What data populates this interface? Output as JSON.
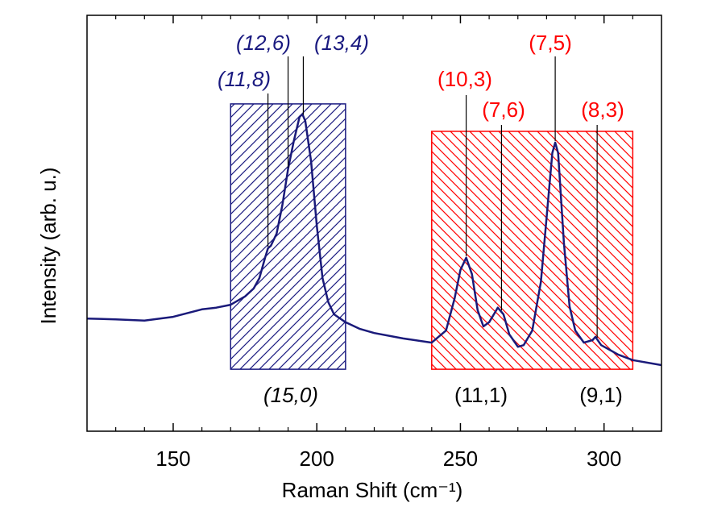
{
  "chart_data": {
    "type": "line",
    "x_label": "Raman Shift (cm⁻¹)",
    "y_label": "Intensity (arb. u.)",
    "xlim": [
      120,
      320
    ],
    "xticks": [
      150,
      200,
      250,
      300
    ],
    "minor_tick_step": 10,
    "ylim": [
      0,
      100
    ],
    "x": [
      120,
      130,
      140,
      150,
      160,
      165,
      170,
      175,
      178,
      180,
      182,
      183,
      184,
      186,
      188,
      190,
      192,
      194,
      195,
      196,
      198,
      200,
      202,
      204,
      206,
      210,
      215,
      220,
      230,
      240,
      245,
      248,
      250,
      252,
      254,
      256,
      258,
      260,
      262,
      263,
      265,
      267,
      270,
      272,
      275,
      278,
      280,
      282,
      283,
      284,
      286,
      288,
      290,
      293,
      296,
      297,
      299,
      305,
      310,
      320
    ],
    "series": [
      {
        "color": "#1a1a7a",
        "values": [
          27.1,
          26.9,
          26.6,
          27.5,
          29.3,
          29.7,
          30.4,
          32.4,
          34.3,
          36.8,
          41.7,
          44.0,
          44.6,
          47.5,
          54.3,
          63.0,
          69.8,
          75.6,
          76.2,
          74.6,
          64.9,
          49.4,
          36.8,
          31.0,
          28.1,
          26.2,
          24.6,
          23.6,
          22.3,
          21.3,
          24.2,
          32.0,
          38.8,
          41.7,
          37.8,
          29.1,
          25.2,
          26.2,
          28.5,
          29.7,
          28.1,
          23.3,
          20.3,
          20.7,
          24.2,
          35.9,
          51.4,
          66.9,
          69.4,
          66.9,
          45.5,
          30.0,
          24.2,
          21.3,
          21.9,
          22.7,
          20.7,
          18.4,
          17.1,
          15.9
        ]
      }
    ],
    "regions": [
      {
        "xlim": [
          170,
          210
        ],
        "ylim": [
          14.9,
          78.7
        ],
        "color": "#1a1a80",
        "hatch": "/",
        "labels": [
          "(15,0)"
        ],
        "style": "italic"
      },
      {
        "xlim": [
          240,
          310
        ],
        "ylim": [
          14.9,
          72.1
        ],
        "color": "#ff0000",
        "hatch": "\\",
        "labels": [
          "(11,1)",
          "(9,1)"
        ],
        "style": "normal"
      }
    ],
    "annotations": [
      {
        "text": "(11,8)",
        "x": 183,
        "color": "#1a1a80",
        "style": "italic"
      },
      {
        "text": "(12,6)",
        "x": 190,
        "color": "#1a1a80",
        "style": "italic"
      },
      {
        "text": "(13,4)",
        "x": 195.3,
        "color": "#1a1a80",
        "style": "italic"
      },
      {
        "text": "(10,3)",
        "x": 252,
        "color": "#ff0000",
        "style": "normal"
      },
      {
        "text": "(7,6)",
        "x": 264.3,
        "color": "#ff0000",
        "style": "normal"
      },
      {
        "text": "(7,5)",
        "x": 283,
        "color": "#ff0000",
        "style": "normal"
      },
      {
        "text": "(8,3)",
        "x": 297.6,
        "color": "#ff0000",
        "style": "normal"
      }
    ]
  }
}
